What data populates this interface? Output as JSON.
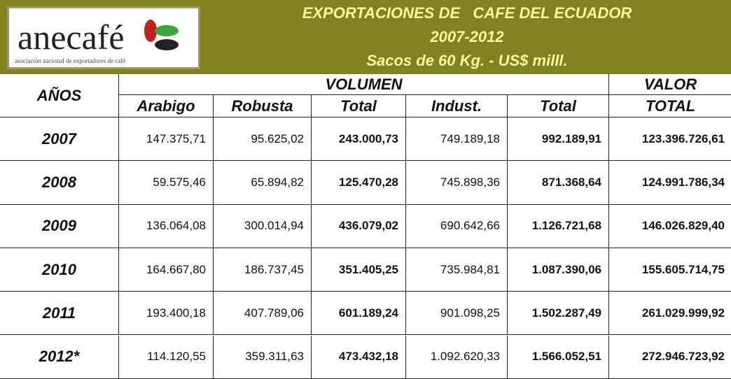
{
  "logo": {
    "name": "anecafé",
    "subtitle": "asociación nacional de exportadores de café"
  },
  "header": {
    "lines": [
      "EXPORTACIONES DE   CAFE DEL ECUADOR",
      "2007-2012",
      "Sacos de 60 Kg. - US$ milll."
    ]
  },
  "table": {
    "year_header": "AÑOS",
    "group_headers": [
      "VOLUMEN",
      "VALOR"
    ],
    "columns": [
      "Arabigo",
      "Robusta",
      "Total",
      "Indust.",
      "Total",
      "TOTAL"
    ],
    "rows": [
      [
        "2007",
        "147.375,71",
        "95.625,02",
        "243.000,73",
        "749.189,18",
        "992.189,91",
        "123.396.726,61"
      ],
      [
        "2008",
        "59.575,46",
        "65.894,82",
        "125.470,28",
        "745.898,36",
        "871.368,64",
        "124.991.786,34"
      ],
      [
        "2009",
        "136.064,08",
        "300.014,94",
        "436.079,02",
        "690.642,66",
        "1.126.721,68",
        "146.026.829,40"
      ],
      [
        "2010",
        "164.667,80",
        "186.737,45",
        "351.405,25",
        "735.984,81",
        "1.087.390,06",
        "155.605.714,75"
      ],
      [
        "2011",
        "193.400,18",
        "407.789,06",
        "601.189,24",
        "901.098,25",
        "1.502.287,49",
        "261.029.999,92"
      ],
      [
        "2012*",
        "114.120,55",
        "359.311,63",
        "473.432,18",
        "1.092.620,33",
        "1.566.052,51",
        "272.946.723,92"
      ]
    ]
  }
}
